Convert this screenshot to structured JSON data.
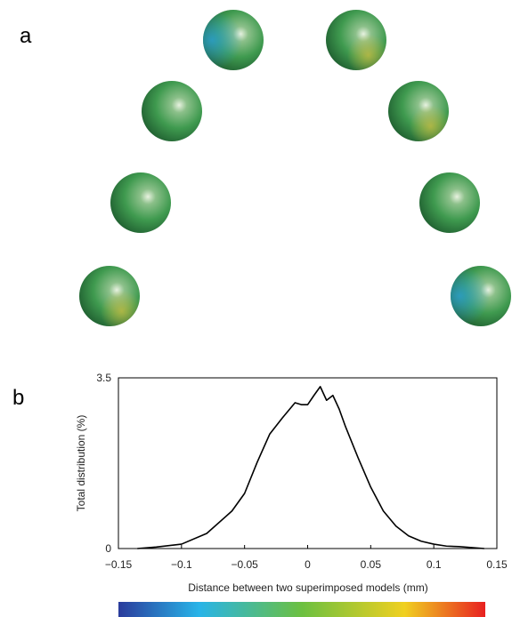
{
  "panel_labels": [
    "a",
    "b"
  ],
  "chart_data": {
    "type": "line",
    "xlabel": "Distance between two superimposed models (mm)",
    "ylabel": "Total distribution (%)",
    "x": [
      -0.135,
      -0.12,
      -0.1,
      -0.08,
      -0.06,
      -0.05,
      -0.04,
      -0.03,
      -0.02,
      -0.01,
      -0.005,
      0,
      0.005,
      0.01,
      0.015,
      0.02,
      0.025,
      0.03,
      0.04,
      0.05,
      0.06,
      0.07,
      0.08,
      0.09,
      0.1,
      0.11,
      0.12,
      0.14
    ],
    "values": [
      0,
      0.03,
      0.09,
      0.31,
      0.77,
      1.13,
      1.77,
      2.35,
      2.68,
      2.99,
      2.95,
      2.95,
      3.14,
      3.32,
      3.04,
      3.14,
      2.86,
      2.5,
      1.86,
      1.26,
      0.77,
      0.46,
      0.26,
      0.15,
      0.09,
      0.05,
      0.04,
      0
    ],
    "color": "#000000",
    "xlim": [
      -0.15,
      0.15
    ],
    "xticks": [
      {
        "value": -0.15,
        "label": "−0.15"
      },
      {
        "value": -0.1,
        "label": "−0.1"
      },
      {
        "value": -0.05,
        "label": "−0.05"
      },
      0,
      0.05,
      0.1,
      0.15
    ],
    "ylim": [
      0,
      3.5
    ],
    "yticks": [
      0,
      3.5
    ],
    "grid": false
  }
}
